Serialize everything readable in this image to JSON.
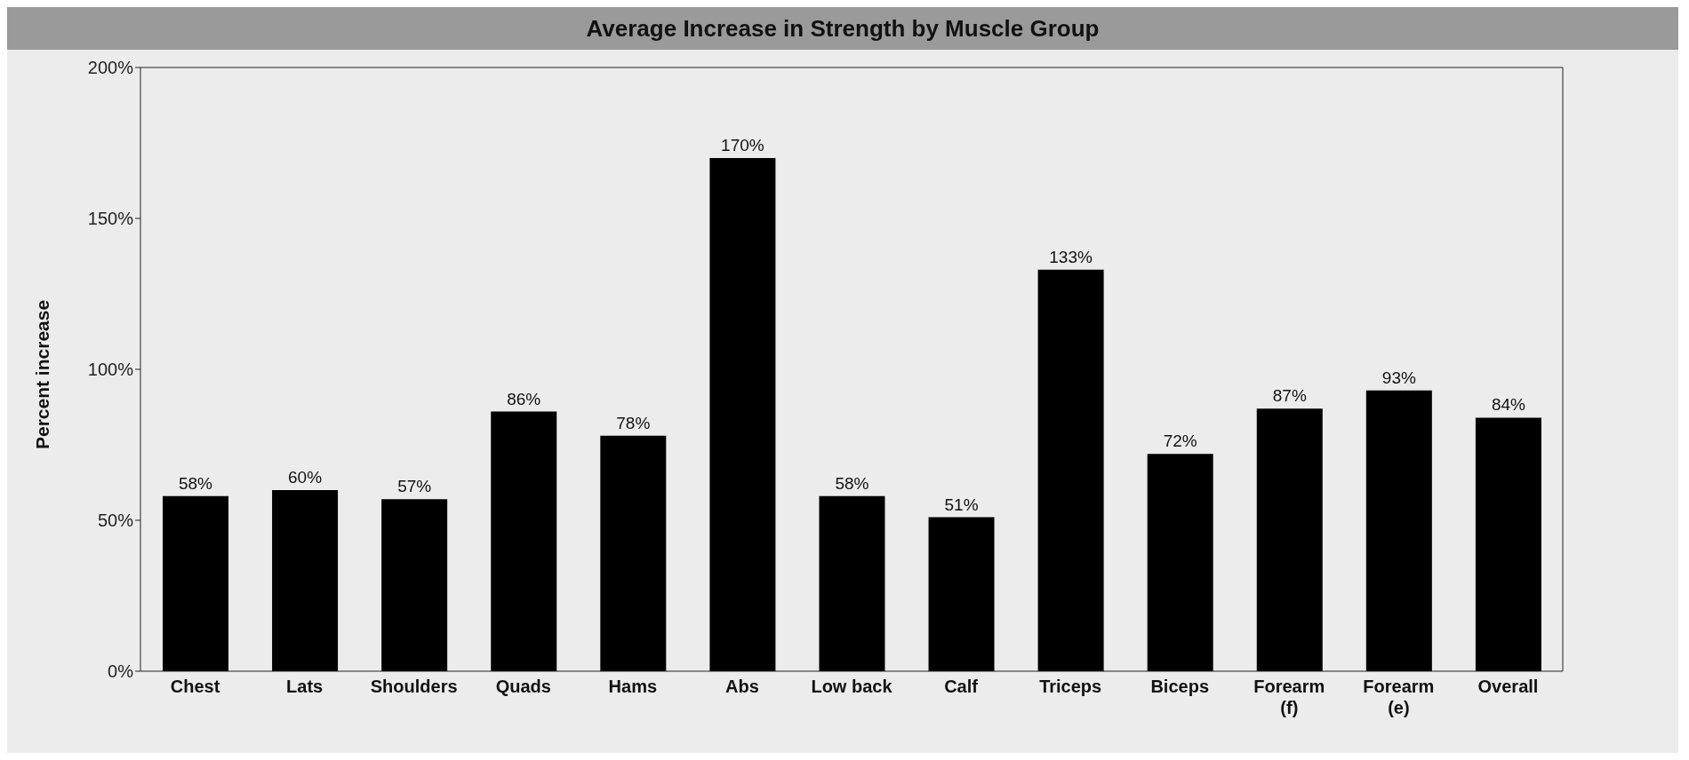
{
  "chart_data": {
    "type": "bar",
    "title": "Average Increase in Strength by Muscle Group",
    "ylabel": "Percent increase",
    "categories": [
      "Chest",
      "Lats",
      "Shoulders",
      "Quads",
      "Hams",
      "Abs",
      "Low back",
      "Calf",
      "Triceps",
      "Biceps",
      "Forearm\n(f)",
      "Forearm\n(e)",
      "Overall"
    ],
    "values": [
      58,
      60,
      57,
      86,
      78,
      170,
      58,
      51,
      133,
      72,
      87,
      93,
      84
    ],
    "value_labels": [
      "58%",
      "60%",
      "57%",
      "86%",
      "78%",
      "170%",
      "58%",
      "51%",
      "133%",
      "72%",
      "87%",
      "93%",
      "84%"
    ],
    "color": "#000000",
    "ylim": [
      0,
      200
    ],
    "yticks": [
      {
        "value": 0,
        "label": "0%"
      },
      {
        "value": 50,
        "label": "50%"
      },
      {
        "value": 100,
        "label": "100%"
      },
      {
        "value": 150,
        "label": "150%"
      },
      {
        "value": 200,
        "label": "200%"
      }
    ],
    "grid": false
  }
}
